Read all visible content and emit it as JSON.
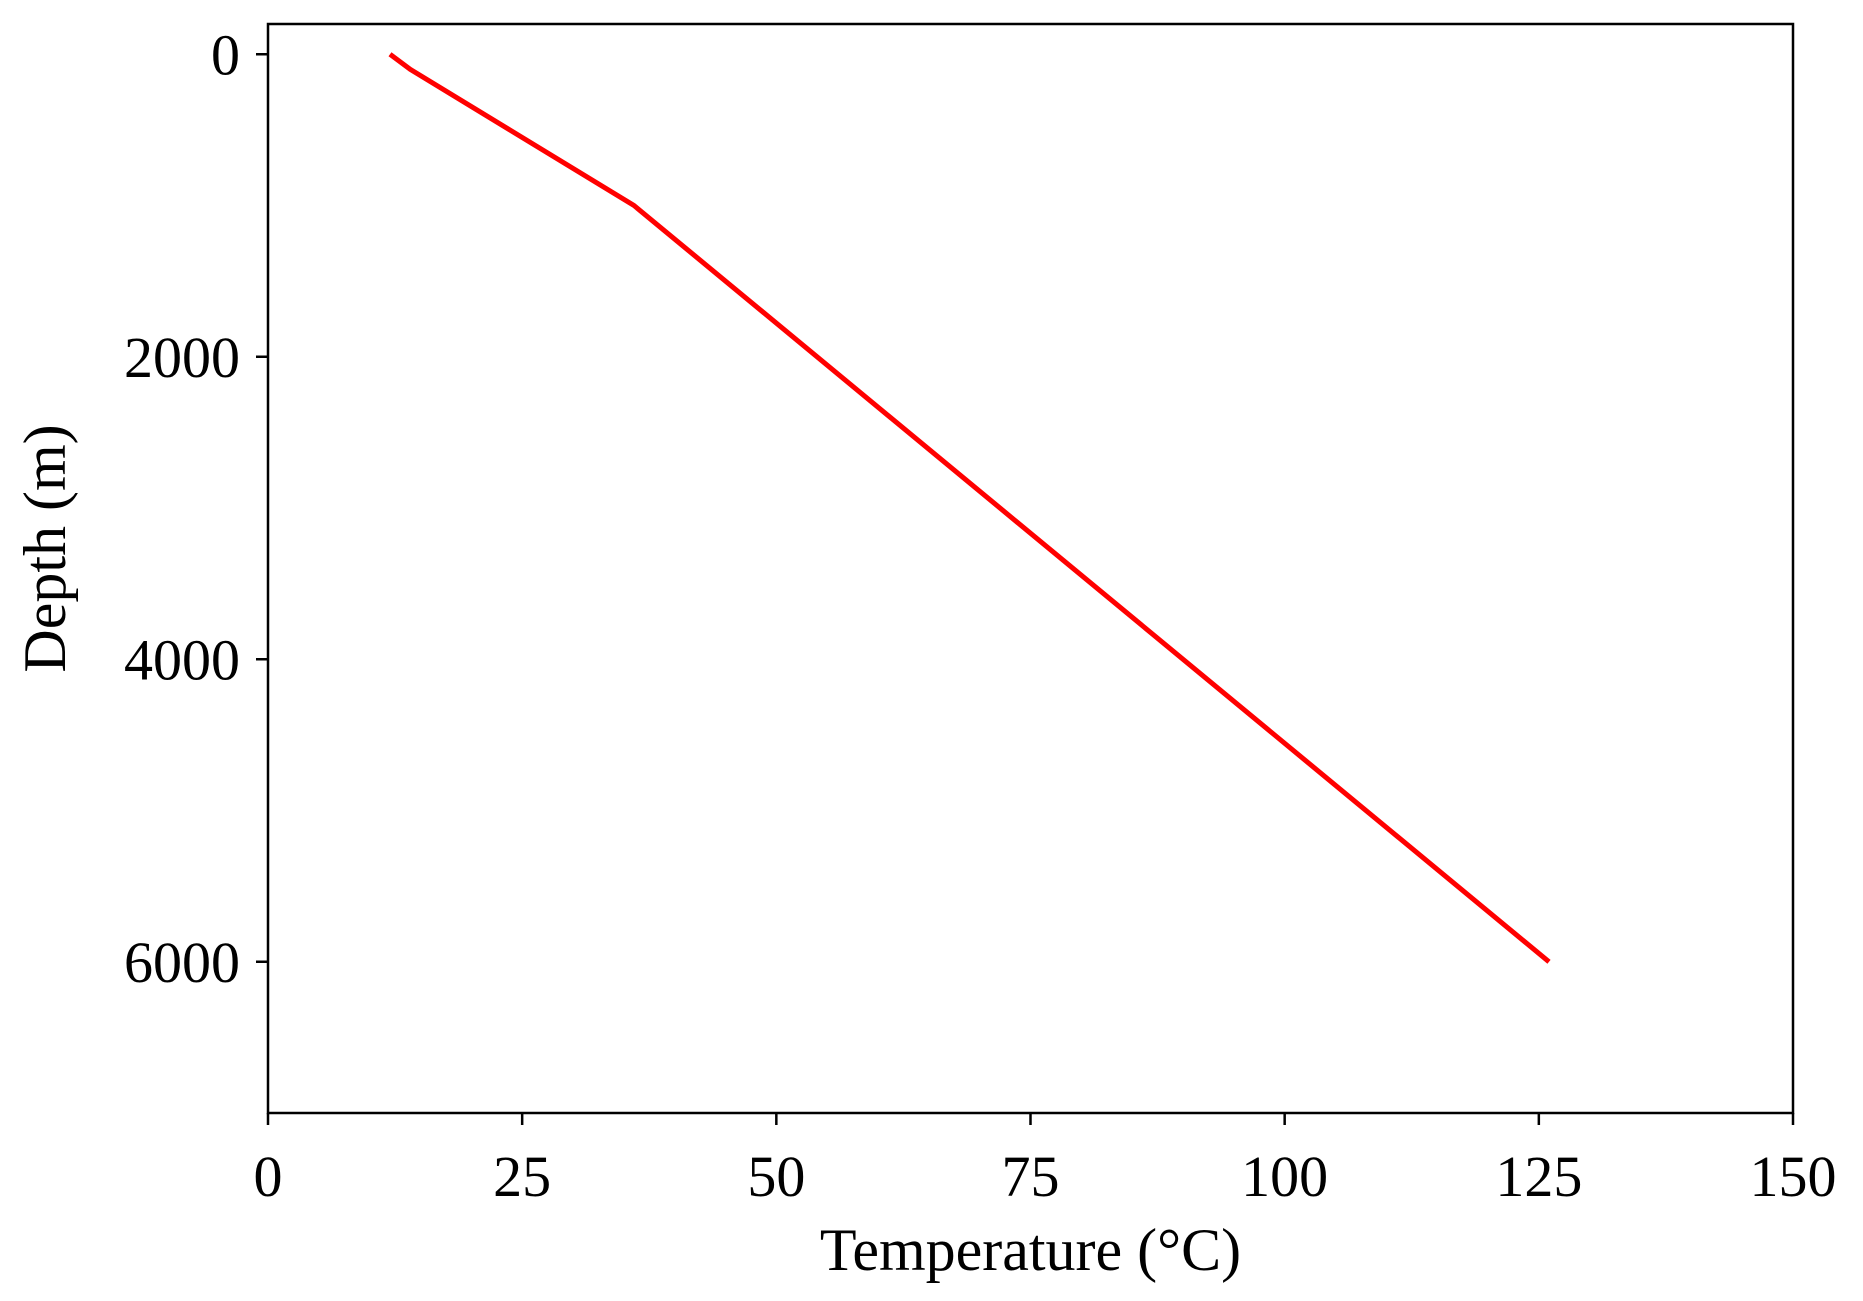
{
  "chart_data": {
    "type": "line",
    "title": "",
    "xlabel": "Temperature (°C)",
    "ylabel": "Depth (m)",
    "xlim": [
      0,
      150
    ],
    "ylim": [
      7000,
      -200
    ],
    "y_inverted": true,
    "grid": false,
    "x_ticks": [
      0,
      25,
      50,
      75,
      100,
      125,
      150
    ],
    "x_tick_labels": [
      "0",
      "25",
      "50",
      "75",
      "100",
      "125",
      "150"
    ],
    "y_ticks": [
      0,
      2000,
      4000,
      6000
    ],
    "y_tick_labels": [
      "0",
      "2000",
      "4000",
      "6000"
    ],
    "series": [
      {
        "color": "#ff0000",
        "x": [
          12,
          14,
          36,
          126
        ],
        "y": [
          0,
          100,
          1000,
          6000
        ]
      }
    ]
  }
}
